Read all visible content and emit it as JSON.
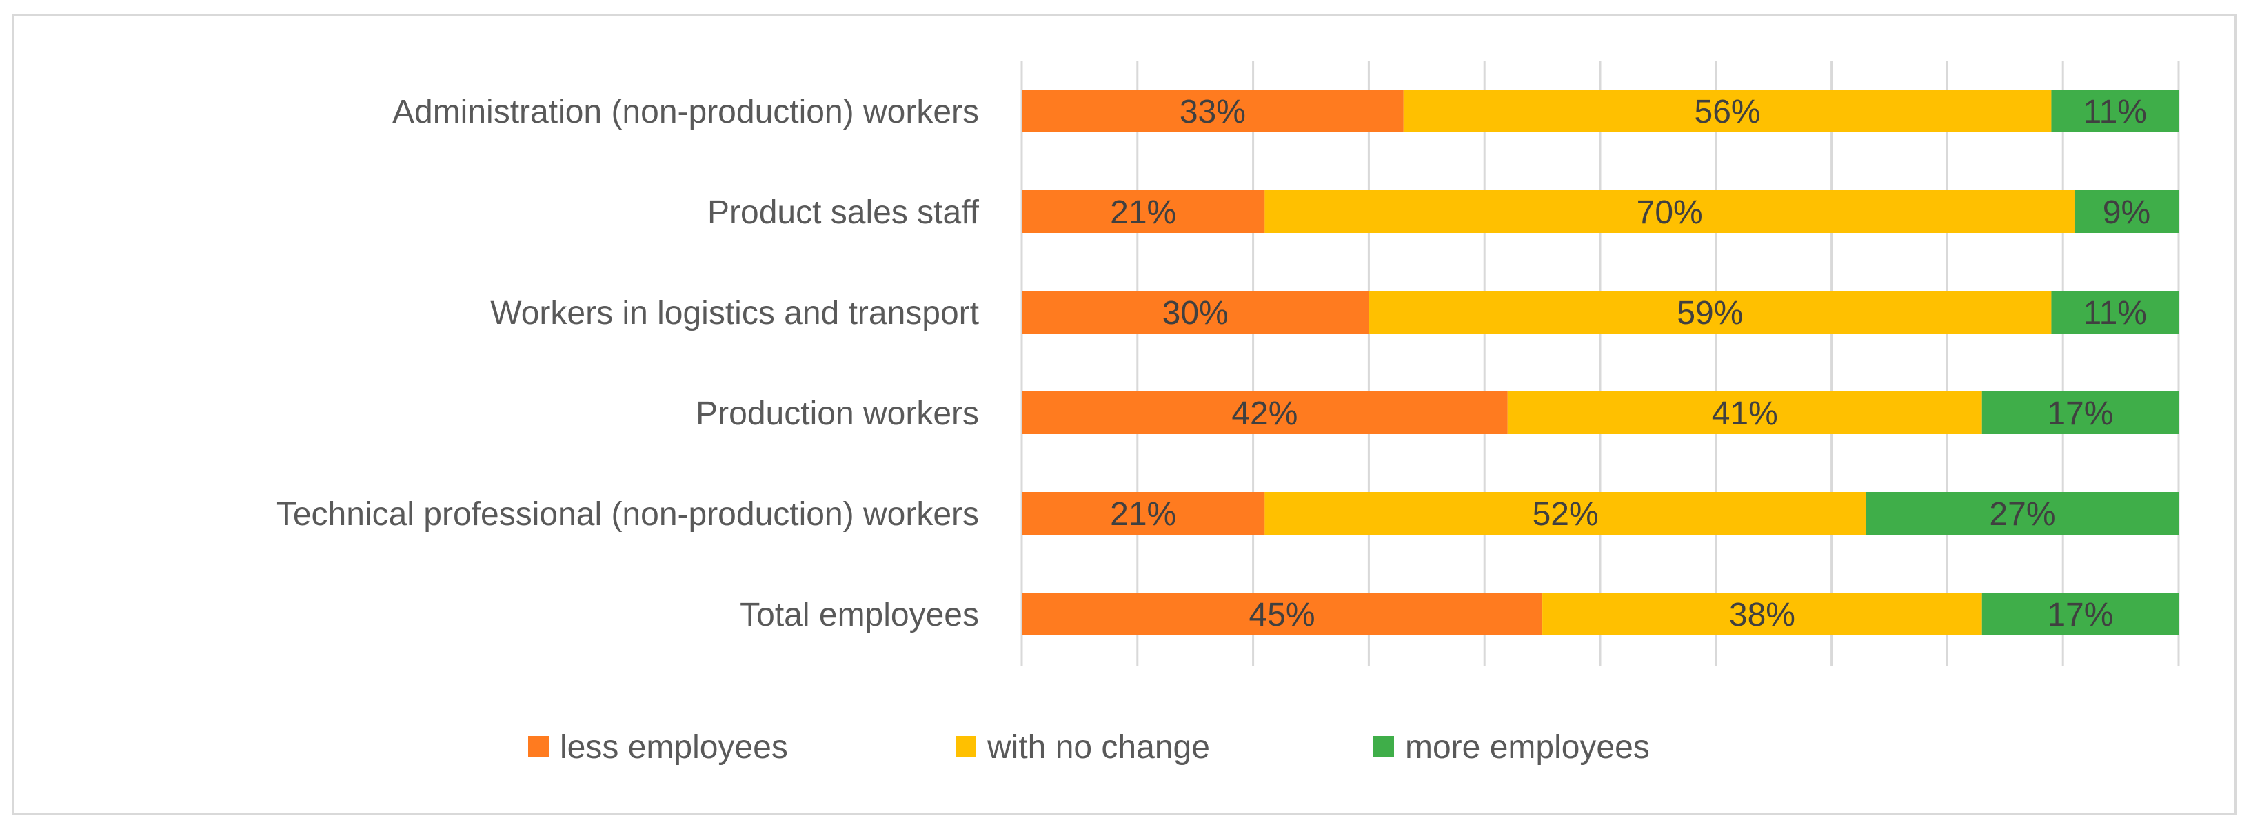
{
  "chart_data": {
    "type": "bar",
    "orientation": "horizontal",
    "stacked": "100%",
    "categories": [
      "Administration (non-production) workers",
      "Product sales staff",
      "Workers in logistics and transport",
      "Production workers",
      "Technical professional (non-production) workers",
      "Total employees"
    ],
    "series": [
      {
        "name": "less employees",
        "color": "#ff7b1f",
        "values": [
          33,
          21,
          30,
          42,
          21,
          45
        ]
      },
      {
        "name": "with no change",
        "color": "#ffc000",
        "values": [
          56,
          70,
          59,
          41,
          52,
          38
        ]
      },
      {
        "name": "more employees",
        "color": "#3fae49",
        "values": [
          11,
          9,
          11,
          17,
          27,
          17
        ]
      }
    ],
    "value_suffix": "%",
    "xlim": [
      0,
      100
    ],
    "grid": true,
    "legend": "bottom",
    "title": "",
    "xlabel": "",
    "ylabel": ""
  }
}
